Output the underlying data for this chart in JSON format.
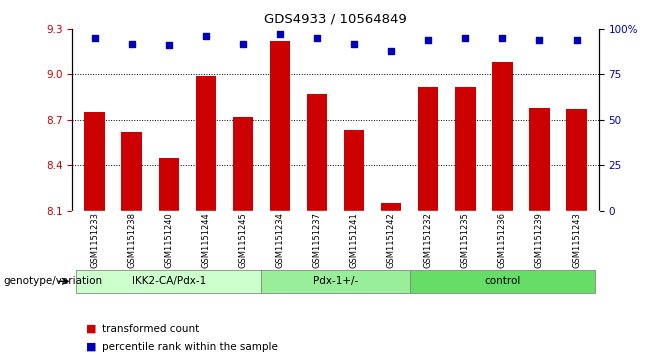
{
  "title": "GDS4933 / 10564849",
  "samples": [
    "GSM1151233",
    "GSM1151238",
    "GSM1151240",
    "GSM1151244",
    "GSM1151245",
    "GSM1151234",
    "GSM1151237",
    "GSM1151241",
    "GSM1151242",
    "GSM1151232",
    "GSM1151235",
    "GSM1151236",
    "GSM1151239",
    "GSM1151243"
  ],
  "bar_values": [
    8.75,
    8.62,
    8.45,
    8.99,
    8.72,
    9.22,
    8.87,
    8.63,
    8.15,
    8.92,
    8.92,
    9.08,
    8.78,
    8.77
  ],
  "percentile_values": [
    95,
    92,
    91,
    96,
    92,
    97,
    95,
    92,
    88,
    94,
    95,
    95,
    94,
    94
  ],
  "groups": [
    {
      "label": "IKK2-CA/Pdx-1",
      "start": 0,
      "end": 5,
      "color": "#ccffcc"
    },
    {
      "label": "Pdx-1+/-",
      "start": 5,
      "end": 9,
      "color": "#99ee99"
    },
    {
      "label": "control",
      "start": 9,
      "end": 14,
      "color": "#66dd66"
    }
  ],
  "ylim_left": [
    8.1,
    9.3
  ],
  "ylim_right": [
    0,
    100
  ],
  "yticks_left": [
    8.1,
    8.4,
    8.7,
    9.0,
    9.3
  ],
  "yticks_right": [
    0,
    25,
    50,
    75,
    100
  ],
  "ytick_labels_right": [
    "0",
    "25",
    "50",
    "75",
    "100%"
  ],
  "bar_color": "#cc0000",
  "dot_color": "#0000bb",
  "grid_color": "#000000",
  "bg_color": "#ffffff",
  "sample_bg_color": "#cccccc",
  "legend_red_label": "transformed count",
  "legend_blue_label": "percentile rank within the sample",
  "genotype_label": "genotype/variation"
}
